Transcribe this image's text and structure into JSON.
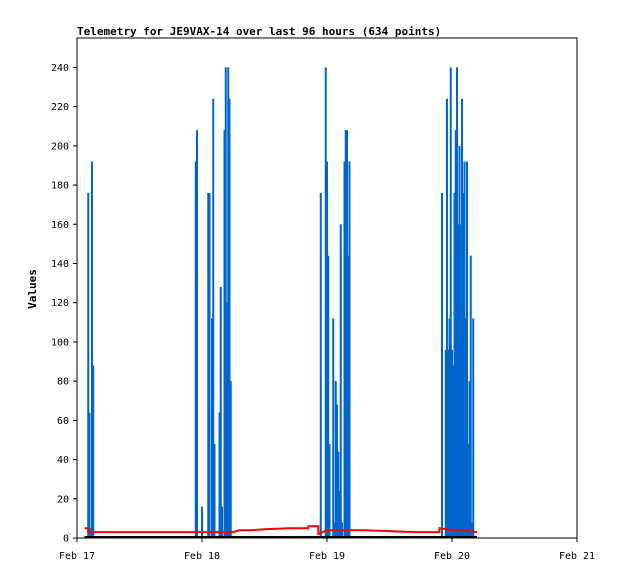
{
  "chart_data": {
    "type": "bar",
    "title": "Telemetry for JE9VAX-14 over last 96 hours (634 points)",
    "xlabel": "",
    "ylabel": "Values",
    "xlim": [
      0,
      4
    ],
    "ylim": [
      0,
      255
    ],
    "x_ticks": [
      {
        "value": 0,
        "label": "Feb 17"
      },
      {
        "value": 1,
        "label": "Feb 18"
      },
      {
        "value": 2,
        "label": "Feb 19"
      },
      {
        "value": 3,
        "label": "Feb 20"
      },
      {
        "value": 4,
        "label": "Feb 21"
      }
    ],
    "y_ticks": [
      0,
      20,
      40,
      60,
      80,
      100,
      120,
      140,
      160,
      180,
      200,
      220,
      240
    ],
    "grid": false,
    "series": [
      {
        "type": "bar",
        "color": "#0066cc",
        "points": [
          [
            0.09,
            176
          ],
          [
            0.1,
            64
          ],
          [
            0.11,
            5
          ],
          [
            0.12,
            192
          ],
          [
            0.13,
            88
          ],
          [
            0.95,
            192
          ],
          [
            0.96,
            208
          ],
          [
            1.0,
            16
          ],
          [
            1.05,
            176
          ],
          [
            1.06,
            176
          ],
          [
            1.08,
            112
          ],
          [
            1.09,
            224
          ],
          [
            1.1,
            48
          ],
          [
            1.14,
            64
          ],
          [
            1.15,
            128
          ],
          [
            1.16,
            16
          ],
          [
            1.18,
            208
          ],
          [
            1.19,
            240
          ],
          [
            1.2,
            120
          ],
          [
            1.21,
            240
          ],
          [
            1.22,
            224
          ],
          [
            1.23,
            80
          ],
          [
            1.95,
            176
          ],
          [
            1.99,
            240
          ],
          [
            2.0,
            192
          ],
          [
            2.01,
            144
          ],
          [
            2.02,
            48
          ],
          [
            2.05,
            112
          ],
          [
            2.06,
            8
          ],
          [
            2.07,
            80
          ],
          [
            2.08,
            68
          ],
          [
            2.09,
            44
          ],
          [
            2.1,
            24
          ],
          [
            2.11,
            160
          ],
          [
            2.12,
            8
          ],
          [
            2.14,
            192
          ],
          [
            2.15,
            208
          ],
          [
            2.16,
            208
          ],
          [
            2.17,
            144
          ],
          [
            2.18,
            192
          ],
          [
            2.92,
            176
          ],
          [
            2.95,
            96
          ],
          [
            2.96,
            224
          ],
          [
            2.97,
            96
          ],
          [
            2.98,
            112
          ],
          [
            2.99,
            240
          ],
          [
            3.0,
            96
          ],
          [
            3.01,
            88
          ],
          [
            3.02,
            176
          ],
          [
            3.03,
            208
          ],
          [
            3.04,
            240
          ],
          [
            3.05,
            160
          ],
          [
            3.06,
            200
          ],
          [
            3.07,
            160
          ],
          [
            3.08,
            224
          ],
          [
            3.09,
            176
          ],
          [
            3.1,
            192
          ],
          [
            3.11,
            112
          ],
          [
            3.12,
            192
          ],
          [
            3.13,
            48
          ],
          [
            3.14,
            80
          ],
          [
            3.15,
            144
          ],
          [
            3.16,
            8
          ],
          [
            3.17,
            112
          ]
        ]
      },
      {
        "type": "line",
        "color": "#ff0000",
        "points": [
          [
            0.06,
            5
          ],
          [
            0.09,
            5
          ],
          [
            0.09,
            3
          ],
          [
            0.5,
            3
          ],
          [
            0.9,
            3
          ],
          [
            1.25,
            3
          ],
          [
            1.3,
            4
          ],
          [
            1.4,
            4
          ],
          [
            1.5,
            4.5
          ],
          [
            1.7,
            5
          ],
          [
            1.85,
            5
          ],
          [
            1.85,
            6
          ],
          [
            1.93,
            6
          ],
          [
            1.93,
            2
          ],
          [
            2.0,
            4
          ],
          [
            2.1,
            4
          ],
          [
            2.3,
            4
          ],
          [
            2.5,
            3.5
          ],
          [
            2.7,
            3
          ],
          [
            2.9,
            3
          ],
          [
            2.9,
            5
          ],
          [
            3.0,
            4
          ],
          [
            3.1,
            4
          ],
          [
            3.2,
            3
          ]
        ]
      },
      {
        "type": "line",
        "color": "#000000",
        "points": [
          [
            0.06,
            0.5
          ],
          [
            3.2,
            0.5
          ]
        ]
      }
    ]
  }
}
